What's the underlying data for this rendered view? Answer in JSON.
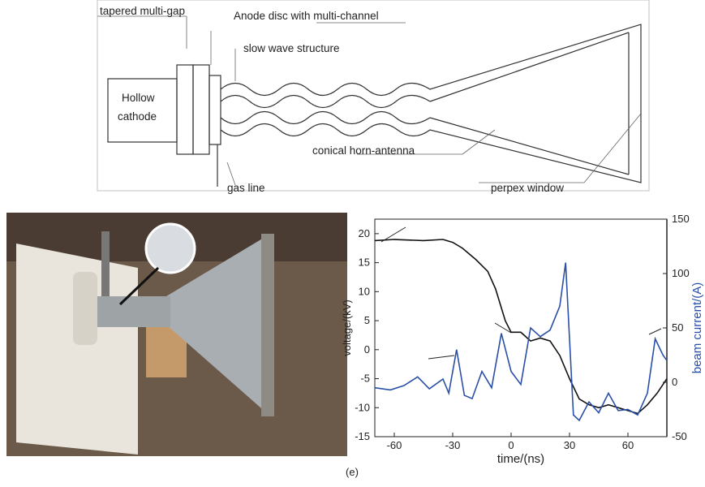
{
  "diagram": {
    "labels": {
      "tapered": "tapered multi-gap",
      "anode": "Anode disc with multi-channel",
      "slow_wave": "slow wave structure",
      "cathode_1": "Hollow",
      "cathode_2": "cathode",
      "horn": "conical horn-antenna",
      "gas": "gas line",
      "window": "perpex window"
    }
  },
  "caption": "(e)",
  "chart_data": {
    "type": "line",
    "xlabel": "time/(ns)",
    "ylabel": "voltage/(kV)",
    "y2label": "beam current/(A)",
    "xlim": [
      -70,
      80
    ],
    "xticks": [
      -60,
      -30,
      0,
      30,
      60
    ],
    "ylim": [
      -15,
      22.5
    ],
    "yticks": [
      -15,
      -10,
      -5,
      0,
      5,
      10,
      15,
      20
    ],
    "y2lim": [
      -50,
      150
    ],
    "y2ticks": [
      -50,
      0,
      50,
      100,
      150
    ],
    "series": [
      {
        "color": "#111111",
        "x": [
          -70,
          -60,
          -45,
          -35,
          -30,
          -25,
          -18,
          -12,
          -8,
          -3,
          0,
          5,
          10,
          15,
          20,
          25,
          30,
          35,
          40,
          45,
          50,
          55,
          60,
          65,
          70,
          75,
          80
        ],
        "values": [
          18.8,
          19.0,
          18.8,
          19.0,
          18.5,
          17.5,
          15.5,
          13.5,
          10.5,
          5,
          3,
          3,
          1.5,
          2,
          1.5,
          -1,
          -5,
          -8.5,
          -9.5,
          -10,
          -9.5,
          -10,
          -10.5,
          -11,
          -9.5,
          -7.5,
          -5
        ]
      },
      {
        "color": "#2a4fa8",
        "axis": "y2",
        "x": [
          -70,
          -62,
          -55,
          -48,
          -42,
          -35,
          -32,
          -28,
          -24,
          -20,
          -15,
          -10,
          -5,
          0,
          5,
          10,
          15,
          20,
          25,
          28,
          32,
          35,
          40,
          45,
          50,
          55,
          60,
          65,
          70,
          74,
          78,
          80
        ],
        "values": [
          -5,
          -7,
          -3,
          5,
          -6,
          3,
          -10,
          30,
          -12,
          -15,
          10,
          -5,
          45,
          10,
          -2,
          50,
          42,
          48,
          70,
          110,
          -30,
          -35,
          -18,
          -28,
          -10,
          -26,
          -25,
          -30,
          -10,
          40,
          25,
          20
        ]
      }
    ]
  }
}
